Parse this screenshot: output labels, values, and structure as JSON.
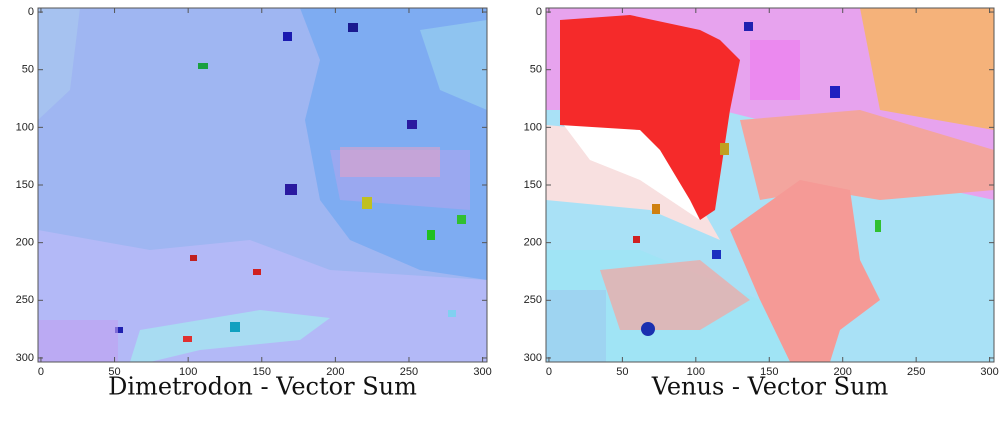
{
  "chart_data": [
    {
      "type": "image",
      "title": "Dimetrodon - Vector Sum",
      "xlim": [
        -2,
        303
      ],
      "ylim": [
        303.5,
        -3.5
      ],
      "y_inverted": true,
      "xticks": [
        0,
        50,
        100,
        150,
        200,
        250,
        300
      ],
      "yticks": [
        0,
        50,
        100,
        150,
        200,
        250,
        300
      ]
    },
    {
      "type": "image",
      "title": "Venus - Vector Sum",
      "xlim": [
        -2,
        303
      ],
      "ylim": [
        303.5,
        -3.5
      ],
      "y_inverted": true,
      "xticks": [
        0,
        50,
        100,
        150,
        200,
        250,
        300
      ],
      "yticks": [
        0,
        50,
        100,
        150,
        200,
        250,
        300
      ]
    }
  ]
}
